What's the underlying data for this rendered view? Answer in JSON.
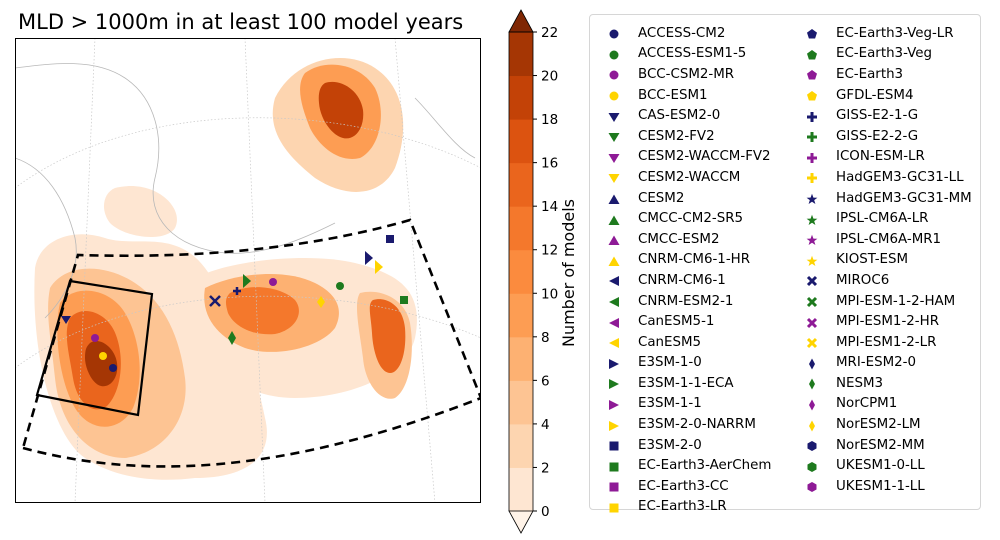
{
  "title": "MLD > 1000m in at least 100 model years",
  "colorbar": {
    "label": "Number of models",
    "ticks": [
      "0",
      "2",
      "4",
      "6",
      "8",
      "10",
      "12",
      "14",
      "16",
      "18",
      "20",
      "22"
    ],
    "colors": [
      "#fff3e8",
      "#fee6d2",
      "#fdd5b0",
      "#fdc493",
      "#fdb172",
      "#fd9d53",
      "#fb8b3e",
      "#f4782c",
      "#ea651d",
      "#dc5310",
      "#c34207",
      "#a53604",
      "#7f2704"
    ]
  },
  "legend": {
    "column1": [
      {
        "label": "ACCESS-CM2",
        "marker": "circle",
        "color": "#1a1a6e"
      },
      {
        "label": "ACCESS-ESM1-5",
        "marker": "circle",
        "color": "#1e7a1e"
      },
      {
        "label": "BCC-CSM2-MR",
        "marker": "circle",
        "color": "#8e1a96"
      },
      {
        "label": "BCC-ESM1",
        "marker": "circle",
        "color": "#ffd400"
      },
      {
        "label": "CAS-ESM2-0",
        "marker": "triangle-down",
        "color": "#1a1a6e"
      },
      {
        "label": "CESM2-FV2",
        "marker": "triangle-down",
        "color": "#1e7a1e"
      },
      {
        "label": "CESM2-WACCM-FV2",
        "marker": "triangle-down",
        "color": "#8e1a96"
      },
      {
        "label": "CESM2-WACCM",
        "marker": "triangle-down",
        "color": "#ffd400"
      },
      {
        "label": "CESM2",
        "marker": "triangle-up",
        "color": "#1a1a6e"
      },
      {
        "label": "CMCC-CM2-SR5",
        "marker": "triangle-up",
        "color": "#1e7a1e"
      },
      {
        "label": "CMCC-ESM2",
        "marker": "triangle-up",
        "color": "#8e1a96"
      },
      {
        "label": "CNRM-CM6-1-HR",
        "marker": "triangle-up",
        "color": "#ffd400"
      },
      {
        "label": "CNRM-CM6-1",
        "marker": "triangle-left",
        "color": "#1a1a6e"
      },
      {
        "label": "CNRM-ESM2-1",
        "marker": "triangle-left",
        "color": "#1e7a1e"
      },
      {
        "label": "CanESM5-1",
        "marker": "triangle-left",
        "color": "#8e1a96"
      },
      {
        "label": "CanESM5",
        "marker": "triangle-left",
        "color": "#ffd400"
      },
      {
        "label": "E3SM-1-0",
        "marker": "triangle-right",
        "color": "#1a1a6e"
      },
      {
        "label": "E3SM-1-1-ECA",
        "marker": "triangle-right",
        "color": "#1e7a1e"
      },
      {
        "label": "E3SM-1-1",
        "marker": "triangle-right",
        "color": "#8e1a96"
      },
      {
        "label": "E3SM-2-0-NARRM",
        "marker": "triangle-right",
        "color": "#ffd400"
      },
      {
        "label": "E3SM-2-0",
        "marker": "square",
        "color": "#1a1a6e"
      },
      {
        "label": "EC-Earth3-AerChem",
        "marker": "square",
        "color": "#1e7a1e"
      },
      {
        "label": "EC-Earth3-CC",
        "marker": "square",
        "color": "#8e1a96"
      },
      {
        "label": "EC-Earth3-LR",
        "marker": "square",
        "color": "#ffd400"
      }
    ],
    "column2": [
      {
        "label": "EC-Earth3-Veg-LR",
        "marker": "pentagon",
        "color": "#1a1a6e"
      },
      {
        "label": "EC-Earth3-Veg",
        "marker": "pentagon",
        "color": "#1e7a1e"
      },
      {
        "label": "EC-Earth3",
        "marker": "pentagon",
        "color": "#8e1a96"
      },
      {
        "label": "GFDL-ESM4",
        "marker": "pentagon",
        "color": "#ffd400"
      },
      {
        "label": "GISS-E2-1-G",
        "marker": "plus",
        "color": "#1a1a6e"
      },
      {
        "label": "GISS-E2-2-G",
        "marker": "plus",
        "color": "#1e7a1e"
      },
      {
        "label": "ICON-ESM-LR",
        "marker": "plus",
        "color": "#8e1a96"
      },
      {
        "label": "HadGEM3-GC31-LL",
        "marker": "plus",
        "color": "#ffd400"
      },
      {
        "label": "HadGEM3-GC31-MM",
        "marker": "star",
        "color": "#1a1a6e"
      },
      {
        "label": "IPSL-CM6A-LR",
        "marker": "star",
        "color": "#1e7a1e"
      },
      {
        "label": "IPSL-CM6A-MR1",
        "marker": "star",
        "color": "#8e1a96"
      },
      {
        "label": "KIOST-ESM",
        "marker": "star",
        "color": "#ffd400"
      },
      {
        "label": "MIROC6",
        "marker": "x",
        "color": "#1a1a6e"
      },
      {
        "label": "MPI-ESM-1-2-HAM",
        "marker": "x",
        "color": "#1e7a1e"
      },
      {
        "label": "MPI-ESM1-2-HR",
        "marker": "x",
        "color": "#8e1a96"
      },
      {
        "label": "MPI-ESM1-2-LR",
        "marker": "x",
        "color": "#ffd400"
      },
      {
        "label": "MRI-ESM2-0",
        "marker": "thin-diamond",
        "color": "#1a1a6e"
      },
      {
        "label": "NESM3",
        "marker": "thin-diamond",
        "color": "#1e7a1e"
      },
      {
        "label": "NorCPM1",
        "marker": "thin-diamond",
        "color": "#8e1a96"
      },
      {
        "label": "NorESM2-LM",
        "marker": "thin-diamond",
        "color": "#ffd400"
      },
      {
        "label": "NorESM2-MM",
        "marker": "hexagon",
        "color": "#1a1a6e"
      },
      {
        "label": "UKESM1-0-LL",
        "marker": "hexagon",
        "color": "#1e7a1e"
      },
      {
        "label": "UKESM1-1-LL",
        "marker": "hexagon",
        "color": "#8e1a96"
      }
    ]
  }
}
